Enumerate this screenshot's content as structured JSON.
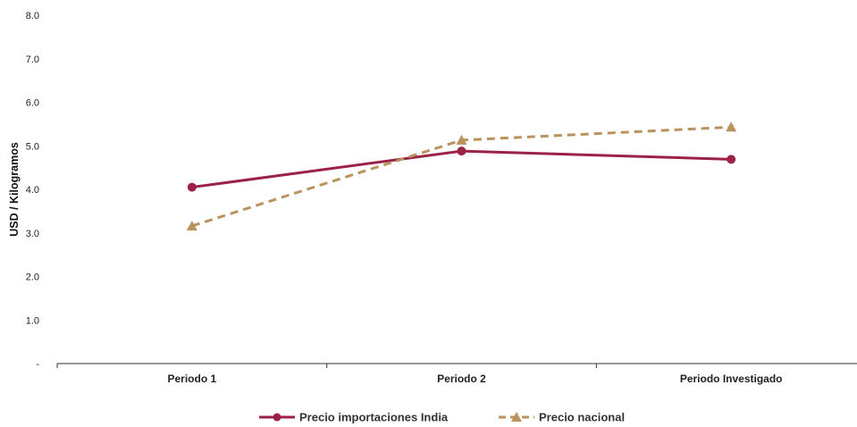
{
  "chart_data": {
    "type": "line",
    "ylabel": "USD / Kilogramos",
    "xlabel": "",
    "categories": [
      "Periodo 1",
      "Periodo 2",
      "Periodo Investigado"
    ],
    "ylim": [
      0,
      8
    ],
    "yticks": [
      "-",
      "1.0",
      "2.0",
      "3.0",
      "4.0",
      "5.0",
      "6.0",
      "7.0",
      "8.0"
    ],
    "grid": false,
    "legend_position": "bottom-center",
    "series": [
      {
        "name": "Precio importaciones India",
        "values": [
          4.05,
          4.88,
          4.69
        ],
        "color": "#9b2247",
        "style": "solid",
        "marker": "circle"
      },
      {
        "name": "Precio nacional",
        "values": [
          3.16,
          5.13,
          5.43
        ],
        "color": "#b9925e",
        "style": "dashed",
        "marker": "triangle"
      }
    ]
  }
}
